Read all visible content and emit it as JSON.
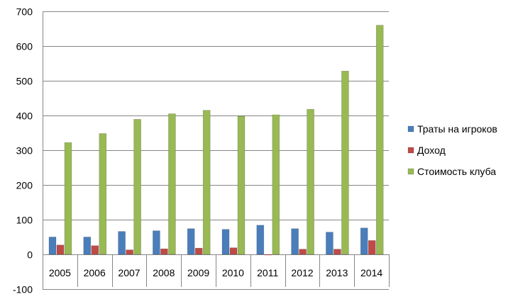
{
  "chart_data": {
    "type": "bar",
    "categories": [
      "2005",
      "2006",
      "2007",
      "2008",
      "2009",
      "2010",
      "2011",
      "2012",
      "2013",
      "2014"
    ],
    "series": [
      {
        "name": "Траты на игроков",
        "color": "#4a7ebb",
        "values": [
          50,
          50,
          66,
          68,
          74,
          72,
          84,
          74,
          64,
          76
        ]
      },
      {
        "name": "Доход",
        "color": "#be4b48",
        "values": [
          27,
          25,
          13,
          16,
          18,
          19,
          -2,
          15,
          15,
          40
        ]
      },
      {
        "name": "Стоимость клуба",
        "color": "#98b954",
        "values": [
          322,
          348,
          389,
          405,
          415,
          398,
          402,
          418,
          528,
          660
        ]
      }
    ],
    "yticks": [
      "-100",
      "0",
      "100",
      "200",
      "300",
      "400",
      "500",
      "600",
      "700"
    ],
    "ylim": [
      -100,
      700
    ],
    "grid": true,
    "legend_position": "right"
  }
}
